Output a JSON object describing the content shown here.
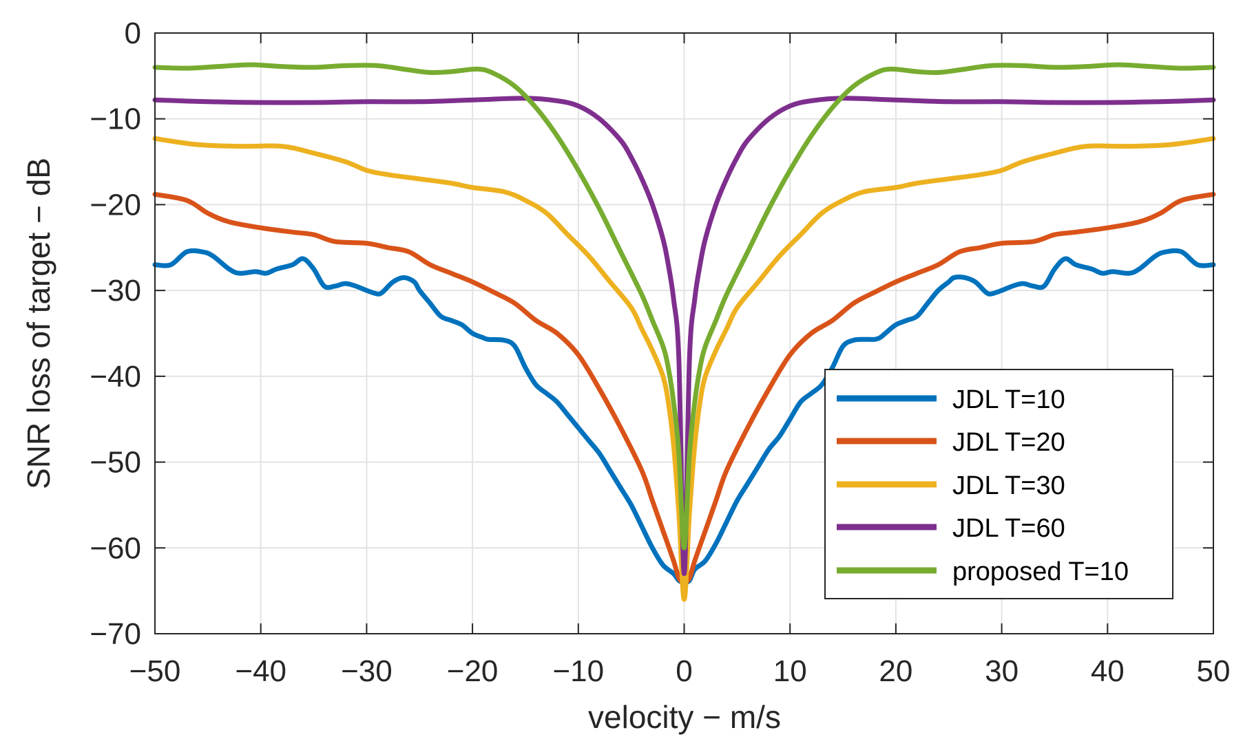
{
  "chart_data": {
    "type": "line",
    "xlabel": "velocity − m/s",
    "ylabel": "SNR loss of target − dB",
    "xlim": [
      -50,
      50
    ],
    "ylim": [
      -70,
      0
    ],
    "grid": true,
    "legend_position": "bottom-right",
    "x_ticks": [
      -50,
      -40,
      -30,
      -20,
      -10,
      0,
      10,
      20,
      30,
      40,
      50
    ],
    "x_tick_labels": [
      "−50",
      "−40",
      "−30",
      "−20",
      "−10",
      "0",
      "10",
      "20",
      "30",
      "40",
      "50"
    ],
    "y_ticks": [
      0,
      -10,
      -20,
      -30,
      -40,
      -50,
      -60,
      -70
    ],
    "y_tick_labels": [
      "0",
      "−10",
      "−20",
      "−30",
      "−40",
      "−50",
      "−60",
      "−70"
    ],
    "series": [
      {
        "name": "JDL T=10",
        "color": "#0072BD",
        "x": [
          -50,
          -48.5,
          -47,
          -45.5,
          -44.5,
          -43,
          -42,
          -40.5,
          -39.5,
          -38.5,
          -37,
          -36,
          -35,
          -34,
          -33,
          -32,
          -31,
          -30,
          -29,
          -28.5,
          -27.5,
          -26.5,
          -25.5,
          -25,
          -24,
          -23,
          -22,
          -21,
          -20,
          -19,
          -18.5,
          -17,
          -16,
          -15,
          -14,
          -13,
          -12,
          -11,
          -10,
          -9,
          -8,
          -7,
          -6,
          -5,
          -4,
          -3,
          -2,
          -1,
          -0.5,
          0,
          0.5,
          1,
          2,
          3,
          4,
          5,
          6,
          7,
          8,
          9,
          10,
          11,
          12,
          13,
          14,
          15,
          16,
          17,
          18,
          18.5,
          19,
          20,
          21,
          22,
          23,
          24,
          25,
          25.5,
          26.5,
          27.5,
          28.5,
          29,
          30,
          31,
          32,
          33,
          34,
          35,
          36,
          37,
          38.5,
          39.5,
          40.5,
          42,
          43,
          44.5,
          45.5,
          47,
          48.5,
          50
        ],
        "y": [
          -27,
          -27,
          -25.5,
          -25.5,
          -26,
          -27.5,
          -28,
          -27.8,
          -28,
          -27.5,
          -27,
          -26.3,
          -27.5,
          -29.5,
          -29.5,
          -29.2,
          -29.5,
          -30,
          -30.4,
          -30.2,
          -29,
          -28.5,
          -29,
          -30,
          -31.5,
          -33,
          -33.5,
          -34,
          -35,
          -35.5,
          -35.7,
          -35.8,
          -36.5,
          -39,
          -41,
          -42,
          -43,
          -44.5,
          -46,
          -47.5,
          -49,
          -51,
          -53,
          -55,
          -57.5,
          -60,
          -62,
          -63,
          -63.8,
          -64,
          -63.8,
          -62.5,
          -61.5,
          -59.5,
          -57,
          -54.5,
          -52.5,
          -50.5,
          -48.5,
          -47,
          -45,
          -43,
          -42,
          -41,
          -39,
          -36.5,
          -35.8,
          -35.7,
          -35.7,
          -35.5,
          -35,
          -34,
          -33.5,
          -33,
          -31.5,
          -30,
          -29,
          -28.5,
          -28.5,
          -29,
          -30.2,
          -30.4,
          -30,
          -29.5,
          -29.2,
          -29.5,
          -29.5,
          -27.5,
          -26.3,
          -27,
          -27.5,
          -28,
          -27.8,
          -28,
          -27.5,
          -26,
          -25.5,
          -25.5,
          -27,
          -27
        ]
      },
      {
        "name": "JDL T=20",
        "color": "#D95319",
        "x": [
          -50,
          -47,
          -45,
          -43,
          -40,
          -37,
          -35,
          -33,
          -30,
          -28,
          -26,
          -24,
          -22,
          -20,
          -18,
          -16,
          -14,
          -12,
          -10,
          -8,
          -6,
          -4,
          -3,
          -2,
          -1,
          -0.5,
          0,
          0.5,
          1,
          2,
          3,
          4,
          6,
          8,
          10,
          12,
          14,
          16,
          18,
          20,
          22,
          24,
          26,
          28,
          30,
          33,
          35,
          37,
          40,
          43,
          45,
          47,
          50
        ],
        "y": [
          -18.8,
          -19.5,
          -21,
          -22,
          -22.7,
          -23.2,
          -23.5,
          -24.3,
          -24.5,
          -25,
          -25.5,
          -27,
          -28,
          -29,
          -30.2,
          -31.5,
          -33.5,
          -35,
          -37.5,
          -41.5,
          -46,
          -51,
          -54.5,
          -58,
          -61.5,
          -63.5,
          -64,
          -63.5,
          -61.5,
          -58,
          -54.5,
          -51,
          -46,
          -41.5,
          -37.5,
          -35,
          -33.5,
          -31.5,
          -30.2,
          -29,
          -28,
          -27,
          -25.5,
          -25,
          -24.5,
          -24.3,
          -23.5,
          -23.2,
          -22.7,
          -22,
          -21,
          -19.5,
          -18.8
        ]
      },
      {
        "name": "JDL T=30",
        "color": "#EDB120",
        "x": [
          -50,
          -46,
          -42,
          -38,
          -35,
          -32,
          -30,
          -28,
          -25,
          -22,
          -20,
          -17,
          -15,
          -13,
          -11,
          -9,
          -7,
          -5,
          -4,
          -3,
          -2,
          -1.5,
          -1,
          -0.5,
          0,
          0.5,
          1,
          1.5,
          2,
          3,
          4,
          5,
          7,
          9,
          11,
          13,
          15,
          17,
          20,
          22,
          25,
          28,
          30,
          32,
          35,
          38,
          42,
          46,
          50
        ],
        "y": [
          -12.3,
          -13,
          -13.2,
          -13.2,
          -14,
          -15,
          -16,
          -16.5,
          -17,
          -17.5,
          -18,
          -18.5,
          -19.5,
          -21,
          -23.5,
          -26,
          -29,
          -32,
          -34.5,
          -37,
          -40,
          -43,
          -48,
          -56,
          -66,
          -56,
          -48,
          -43,
          -40,
          -37,
          -34.5,
          -32,
          -29,
          -26,
          -23.5,
          -21,
          -19.5,
          -18.5,
          -18,
          -17.5,
          -17,
          -16.5,
          -16,
          -15,
          -14,
          -13.2,
          -13.2,
          -13,
          -12.3
        ]
      },
      {
        "name": "JDL T=60",
        "color": "#7E2F8E",
        "x": [
          -50,
          -45,
          -40,
          -35,
          -30,
          -25,
          -20,
          -15,
          -12,
          -10,
          -8,
          -6,
          -5,
          -4,
          -3,
          -2,
          -1.5,
          -1,
          -0.5,
          0,
          0.5,
          1,
          1.5,
          2,
          3,
          4,
          5,
          6,
          8,
          10,
          12,
          15,
          20,
          25,
          30,
          35,
          40,
          45,
          50
        ],
        "y": [
          -7.8,
          -8,
          -8.1,
          -8.1,
          -8,
          -8,
          -7.8,
          -7.6,
          -7.9,
          -8.5,
          -10,
          -12.5,
          -14.5,
          -17,
          -20,
          -24,
          -27,
          -31,
          -38,
          -63,
          -38,
          -31,
          -27,
          -24,
          -20,
          -17,
          -14.5,
          -12.5,
          -10,
          -8.5,
          -7.9,
          -7.6,
          -7.8,
          -8,
          -8,
          -8.1,
          -8.1,
          -8,
          -7.8
        ]
      },
      {
        "name": "proposed T=10",
        "color": "#77AC30",
        "x": [
          -50,
          -47,
          -44,
          -41,
          -38,
          -35,
          -32,
          -29,
          -26,
          -24,
          -22,
          -19.5,
          -18,
          -16,
          -14,
          -12,
          -10,
          -8,
          -6,
          -4,
          -3,
          -2,
          -1.5,
          -1,
          -0.5,
          0,
          0.5,
          1,
          1.5,
          2,
          3,
          4,
          6,
          8,
          10,
          12,
          14,
          16,
          18,
          19.5,
          22,
          24,
          26,
          29,
          32,
          35,
          38,
          41,
          44,
          47,
          50
        ],
        "y": [
          -4,
          -4.1,
          -3.9,
          -3.7,
          -3.9,
          -4,
          -3.8,
          -3.8,
          -4.3,
          -4.6,
          -4.5,
          -4.2,
          -4.7,
          -6.2,
          -8.7,
          -12,
          -16,
          -20.5,
          -25.5,
          -30.5,
          -33.5,
          -36.5,
          -39,
          -43,
          -49,
          -60,
          -49,
          -43,
          -39,
          -36.5,
          -33.5,
          -30.5,
          -25.5,
          -20.5,
          -16,
          -12,
          -8.7,
          -6.2,
          -4.7,
          -4.2,
          -4.5,
          -4.6,
          -4.3,
          -3.8,
          -3.8,
          -4,
          -3.9,
          -3.7,
          -3.9,
          -4.1,
          -4
        ]
      }
    ]
  }
}
